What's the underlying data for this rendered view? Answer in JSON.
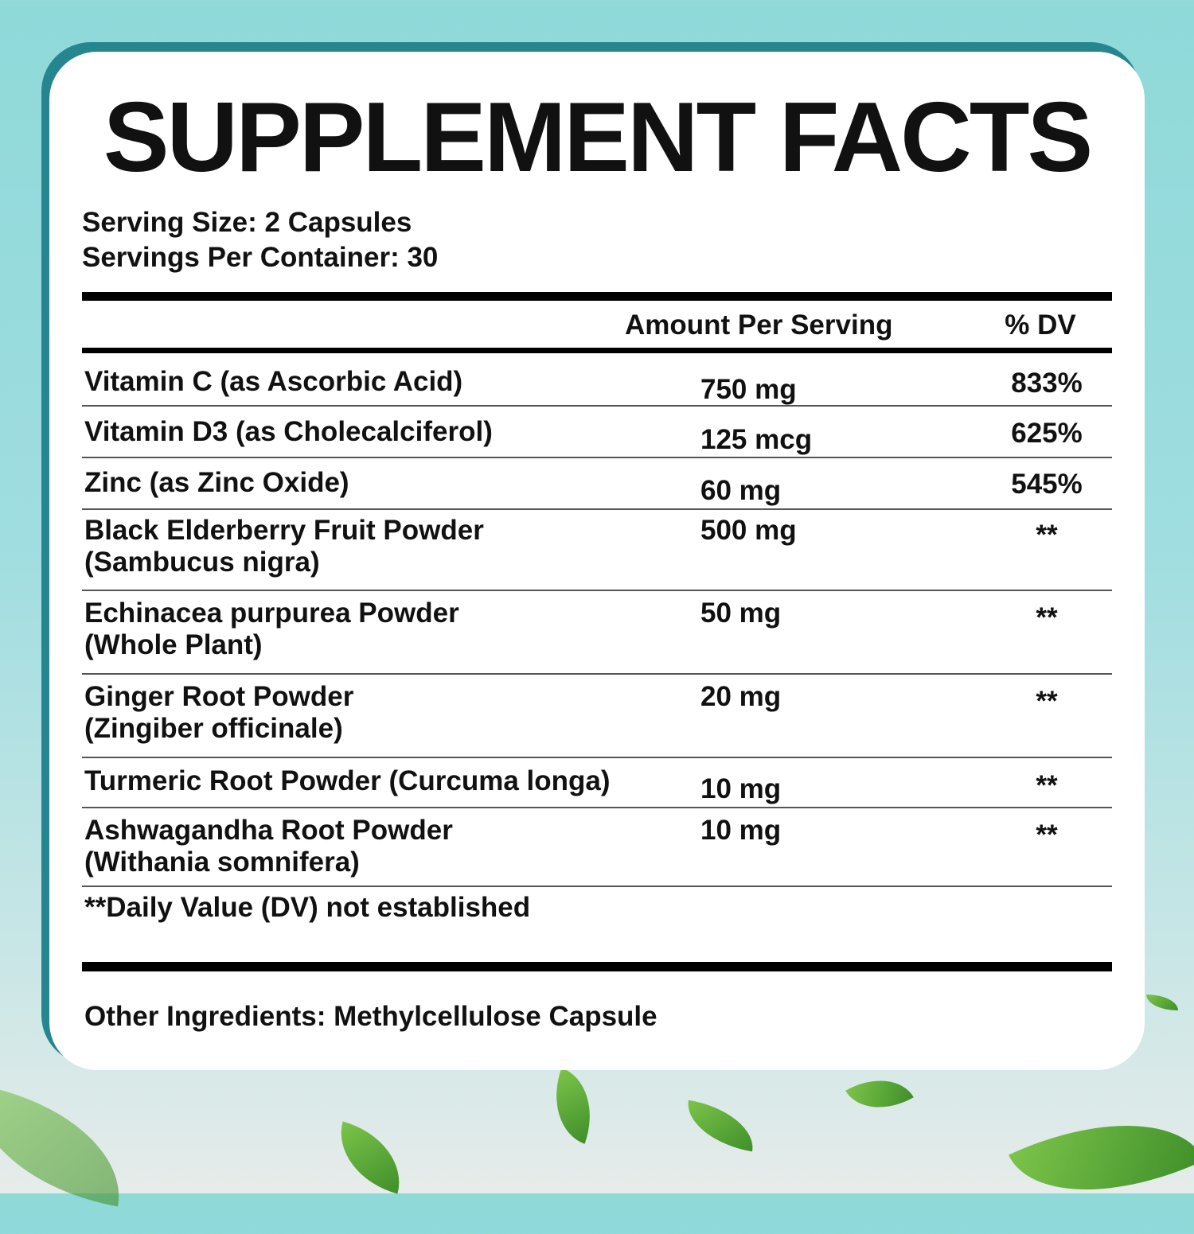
{
  "title": "SUPPLEMENT FACTS",
  "serving_size": "Serving Size: 2 Capsules",
  "servings_per_container": "Servings Per Container: 30",
  "header": {
    "amount": "Amount Per Serving",
    "dv": "% DV"
  },
  "rows": [
    {
      "name": [
        "Vitamin C (as Ascorbic Acid)"
      ],
      "amount": "750 mg",
      "dv": "833%"
    },
    {
      "name": [
        "Vitamin D3 (as Cholecalciferol)"
      ],
      "amount": "125 mcg",
      "dv": "625%"
    },
    {
      "name": [
        "Zinc (as Zinc Oxide)"
      ],
      "amount": "60 mg",
      "dv": "545%"
    },
    {
      "name": [
        "Black Elderberry Fruit Powder",
        "(Sambucus nigra)"
      ],
      "amount": "500 mg",
      "dv": "**"
    },
    {
      "name": [
        "Echinacea purpurea Powder",
        "(Whole Plant)"
      ],
      "amount": "50 mg",
      "dv": "**"
    },
    {
      "name": [
        "Ginger Root Powder",
        "(Zingiber officinale)"
      ],
      "amount": "20 mg",
      "dv": "**"
    },
    {
      "name": [
        "Turmeric Root Powder (Curcuma longa)"
      ],
      "amount": "10 mg",
      "dv": "**"
    },
    {
      "name": [
        "Ashwagandha Root Powder",
        "(Withania somnifera)"
      ],
      "amount": "10 mg",
      "dv": "**"
    }
  ],
  "footnote": "**Daily Value (DV) not established",
  "other_ingredients": "Other Ingredients: Methylcellulose Capsule",
  "colors": {
    "frame": "#25868f",
    "background": "#8fd9d9"
  }
}
